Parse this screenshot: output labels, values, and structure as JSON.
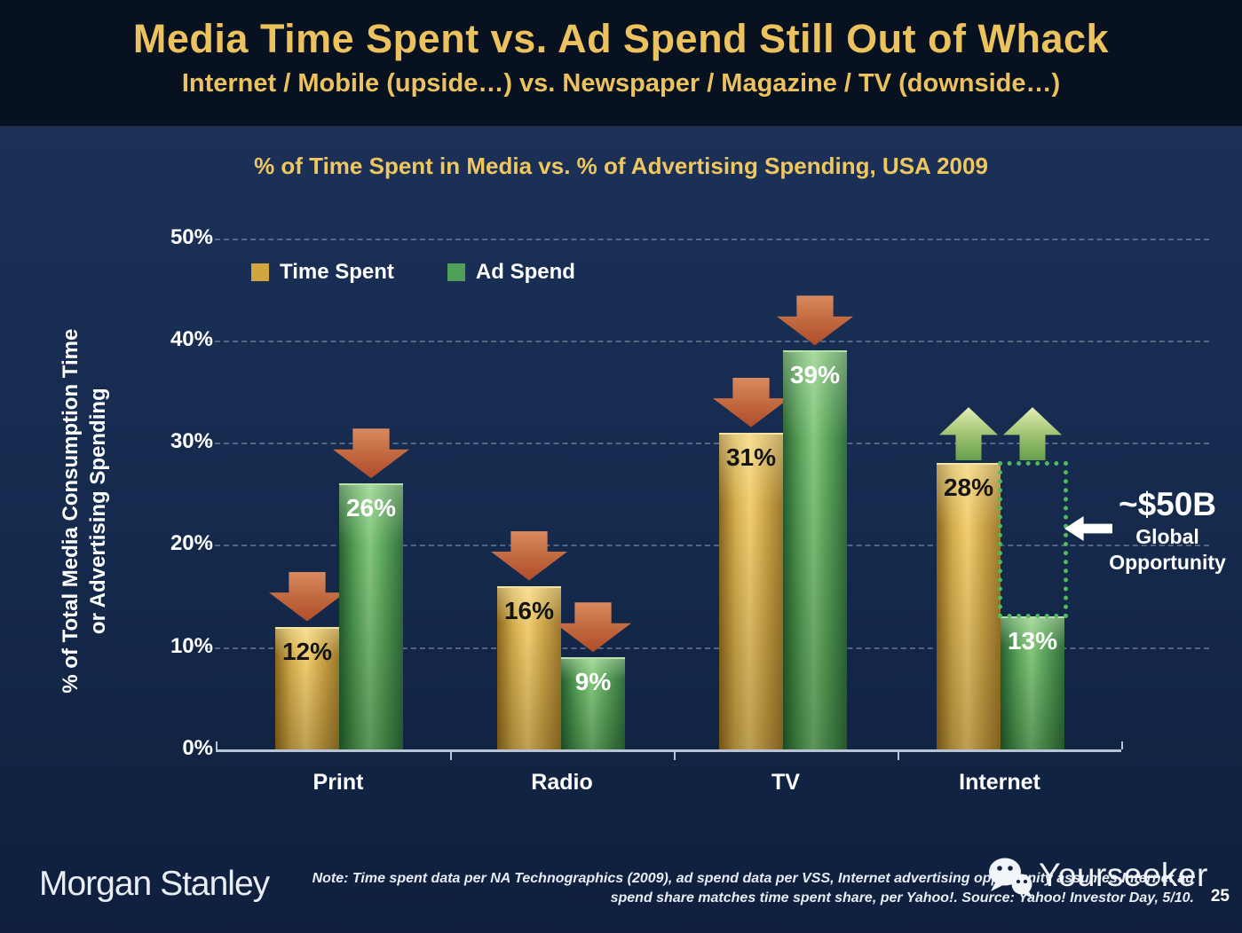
{
  "slide": {
    "title": "Media Time Spent vs. Ad Spend Still Out of Whack",
    "subtitle": "Internet / Mobile (upside…) vs. Newspaper / Magazine / TV (downside…)"
  },
  "chart": {
    "title": "% of Time Spent in Media vs. % of Advertising Spending, USA 2009",
    "y_axis_label_line1": "% of Total Media Consumption Time",
    "y_axis_label_line2": "or Advertising Spending",
    "legend": [
      {
        "label": "Time Spent",
        "color": "#d2a63e"
      },
      {
        "label": "Ad Spend",
        "color": "#4f9f58"
      }
    ]
  },
  "chart_data": {
    "type": "bar",
    "title": "% of Time Spent in Media vs. % of Advertising Spending, USA 2009",
    "categories": [
      "Print",
      "Radio",
      "TV",
      "Internet"
    ],
    "series": [
      {
        "name": "Time Spent",
        "theme": "gold",
        "values": [
          12,
          16,
          31,
          28
        ],
        "labels": [
          "12%",
          "16%",
          "31%",
          "28%"
        ],
        "label_color": "#141414"
      },
      {
        "name": "Ad Spend",
        "theme": "green",
        "values": [
          26,
          9,
          39,
          13
        ],
        "labels": [
          "26%",
          "9%",
          "39%",
          "13%"
        ],
        "label_color": "#ffffff"
      }
    ],
    "trend_arrows": [
      [
        "down",
        "down"
      ],
      [
        "down",
        "down"
      ],
      [
        "down",
        "down"
      ],
      [
        "up",
        "up"
      ]
    ],
    "ylabel": "% of Total Media Consumption Time or Advertising Spending",
    "ylim": [
      0,
      50
    ],
    "yticks": [
      {
        "value": 0,
        "label": "0%"
      },
      {
        "value": 10,
        "label": "10%"
      },
      {
        "value": 20,
        "label": "20%"
      },
      {
        "value": 30,
        "label": "30%"
      },
      {
        "value": 40,
        "label": "40%"
      },
      {
        "value": 50,
        "label": "50%"
      }
    ],
    "grid": "dashed-horizontal",
    "legend_position": "upper-left",
    "annotation": {
      "value": "~$50B",
      "line1": "Global",
      "line2": "Opportunity",
      "meaning": "gap between Internet ad spend (13%) and time spent (28%)"
    }
  },
  "footer": {
    "logo_text": "Morgan Stanley",
    "note_line1": "Note: Time spent data per NA Technographics (2009), ad spend data per VSS, Internet advertising opportunity assumes Internet ad",
    "note_line2": "spend share matches time spent share, per Yahoo!. Source: Yahoo! Investor Day, 5/10.",
    "watermark_text": "Yourseeker",
    "page_number": "25"
  },
  "colors": {
    "background_header": "#07111f",
    "background_body": "#152a4d",
    "title_gold": "#ecc25f",
    "bar_gold": "#d2a63e",
    "bar_green": "#4f9f58",
    "down_arrow": "#c26a41",
    "up_arrow": "#a8c879",
    "opportunity_box": "#52b95f",
    "axis": "#b7c3d6",
    "text_white": "#ffffff"
  }
}
